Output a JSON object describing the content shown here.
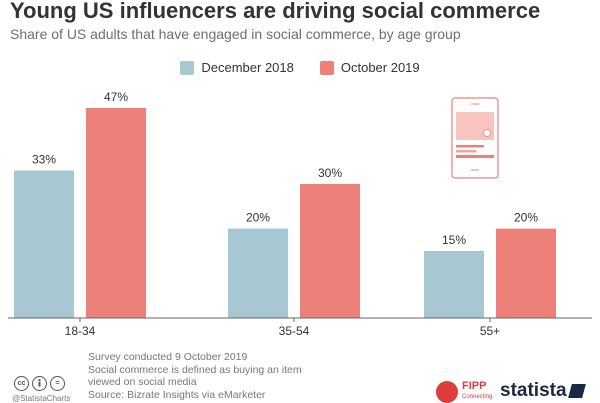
{
  "header": {
    "title": "Young US influencers are driving social commerce",
    "subtitle": "Share of US adults that have engaged in social commerce, by age group"
  },
  "colors": {
    "series_1": "#a7c7d3",
    "series_2": "#ed8079",
    "text": "#333333",
    "muted": "#777777"
  },
  "chart_data": {
    "type": "bar",
    "categories": [
      "18-34",
      "35-54",
      "55+"
    ],
    "series": [
      {
        "name": "December 2018",
        "values": [
          33,
          20,
          15
        ],
        "labels": [
          "33%",
          "20%",
          "15%"
        ]
      },
      {
        "name": "October 2019",
        "values": [
          47,
          30,
          20
        ],
        "labels": [
          "47%",
          "30%",
          "20%"
        ]
      }
    ],
    "ylim": [
      0,
      47
    ],
    "grid": false,
    "legend_position": "top-center"
  },
  "footer": {
    "notes": [
      "Survey conducted 9 October 2019",
      "Social commerce is defined as buying an item",
      "viewed on social media",
      "Source: Bizrate Insights via eMarketer"
    ],
    "handle": "@StatistaCharts",
    "cc_icons": [
      "cc",
      "by",
      "="
    ],
    "fipp_logo": "FIPP",
    "fipp_sub": "Connecting",
    "statista_logo": "statista"
  }
}
